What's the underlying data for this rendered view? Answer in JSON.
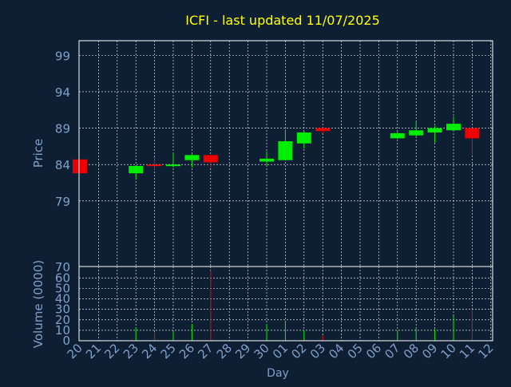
{
  "chart_data": {
    "type": "candlestick",
    "title": "ICFI - last updated 11/07/2025",
    "xlabel": "Day",
    "ylabel": "Price",
    "volume_label": "Volume (0000)",
    "grid": true,
    "colors": {
      "background": "#0f1f33",
      "axis": "#ffffff",
      "label": "#7fa0c8",
      "title": "#ffff00",
      "up": "#00ee00",
      "down": "#ee0000"
    },
    "price_axis": {
      "ylim": [
        70,
        101
      ],
      "ticks": [
        70,
        79,
        84,
        89,
        94,
        99
      ]
    },
    "volume_axis": {
      "ylim": [
        0,
        70
      ],
      "ticks": [
        0,
        10,
        20,
        30,
        40,
        50,
        60
      ]
    },
    "x_ticks": [
      "20",
      "21",
      "22",
      "23",
      "24",
      "25",
      "26",
      "27",
      "28",
      "29",
      "30",
      "01",
      "02",
      "03",
      "04",
      "05",
      "06",
      "07",
      "08",
      "09",
      "10",
      "11",
      "12"
    ],
    "candles": [
      {
        "x": "20",
        "open": 84.7,
        "high": 84.7,
        "low": 82.8,
        "close": 82.8,
        "volume": 0
      },
      {
        "x": "23",
        "open": 82.8,
        "high": 83.9,
        "low": 82.0,
        "close": 83.8,
        "volume": 13
      },
      {
        "x": "24",
        "open": 84.0,
        "high": 85.0,
        "low": 83.3,
        "close": 83.9,
        "volume": 8
      },
      {
        "x": "25",
        "open": 83.8,
        "high": 85.6,
        "low": 83.6,
        "close": 84.0,
        "volume": 9
      },
      {
        "x": "26",
        "open": 84.6,
        "high": 85.4,
        "low": 83.6,
        "close": 85.3,
        "volume": 16
      },
      {
        "x": "27",
        "open": 85.3,
        "high": 85.3,
        "low": 83.5,
        "close": 84.3,
        "volume": 67
      },
      {
        "x": "30",
        "open": 84.4,
        "high": 85.8,
        "low": 83.8,
        "close": 84.8,
        "volume": 16
      },
      {
        "x": "01",
        "open": 84.6,
        "high": 88.8,
        "low": 84.6,
        "close": 87.2,
        "volume": 19
      },
      {
        "x": "02",
        "open": 86.9,
        "high": 88.5,
        "low": 86.2,
        "close": 88.4,
        "volume": 10
      },
      {
        "x": "03",
        "open": 89.0,
        "high": 89.1,
        "low": 88.3,
        "close": 88.6,
        "volume": 5
      },
      {
        "x": "07",
        "open": 87.6,
        "high": 88.5,
        "low": 87.5,
        "close": 88.3,
        "volume": 10
      },
      {
        "x": "08",
        "open": 88.0,
        "high": 90.0,
        "low": 87.7,
        "close": 88.7,
        "volume": 13
      },
      {
        "x": "09",
        "open": 88.4,
        "high": 89.3,
        "low": 87.0,
        "close": 89.0,
        "volume": 11
      },
      {
        "x": "10",
        "open": 88.7,
        "high": 90.6,
        "low": 88.6,
        "close": 89.6,
        "volume": 24
      },
      {
        "x": "11",
        "open": 89.0,
        "high": 89.0,
        "low": 85.2,
        "close": 87.6,
        "volume": 30
      }
    ]
  }
}
